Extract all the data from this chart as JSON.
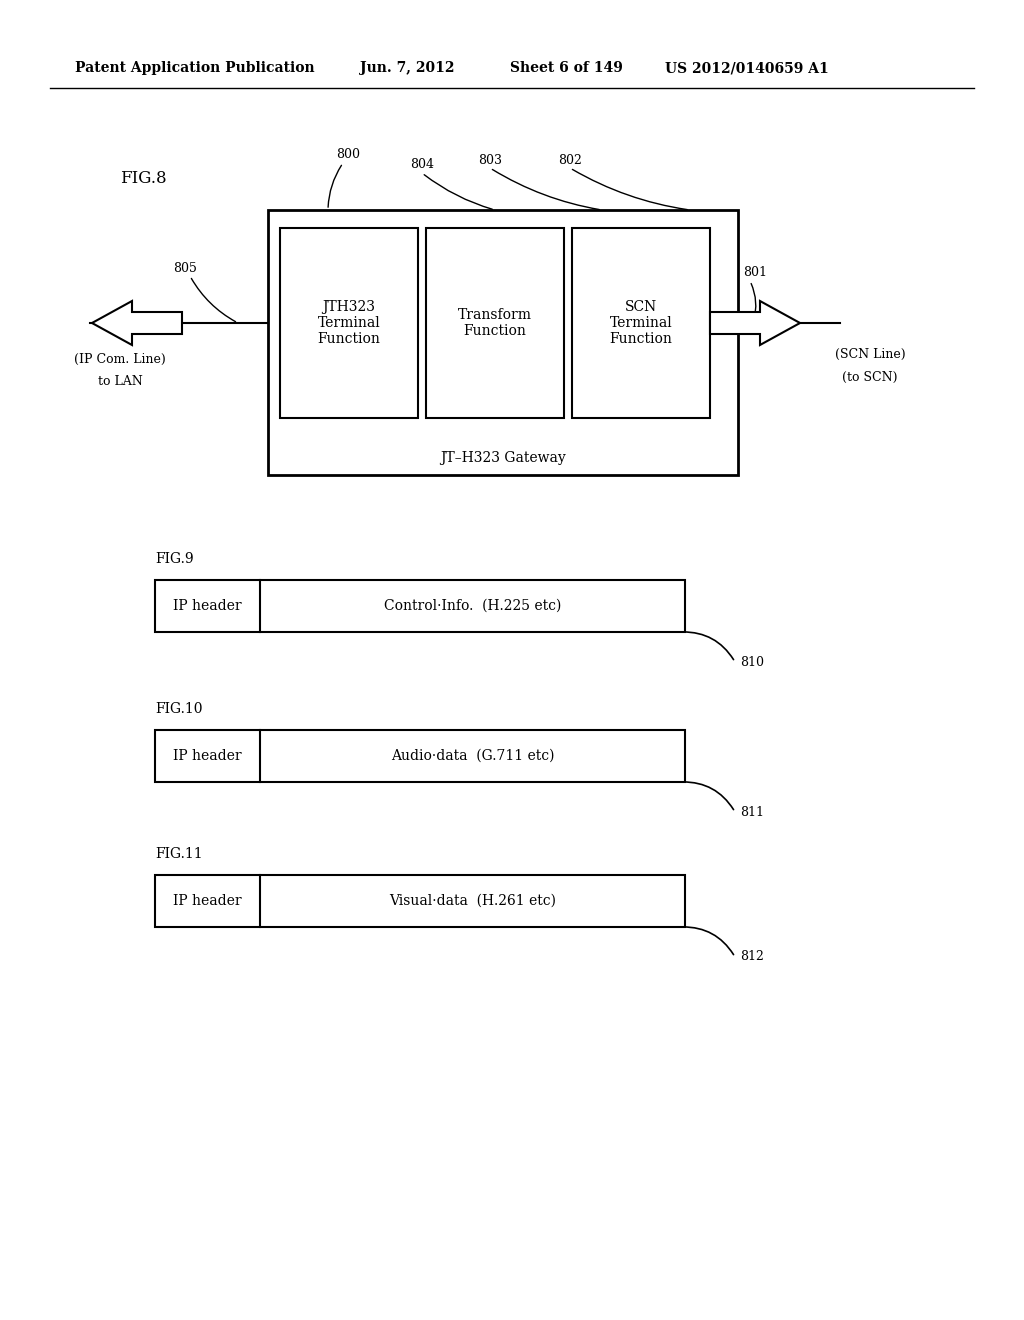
{
  "bg_color": "#ffffff",
  "header_text": "Patent Application Publication",
  "header_date": "Jun. 7, 2012",
  "header_sheet": "Sheet 6 of 149",
  "header_patent": "US 2012/0140659 A1",
  "fig8_label": "FIG.8",
  "fig8_gateway_label": "JT–H323 Gateway",
  "label_800": "800",
  "label_804": "804",
  "label_803": "803",
  "label_802": "802",
  "label_805": "805",
  "label_801": "801",
  "packet_figs": [
    {
      "label": "FIG.9",
      "ip_text": "IP header",
      "data_text": "Control·Info.  (H.225 etc)",
      "ref": "810"
    },
    {
      "label": "FIG.10",
      "ip_text": "IP header",
      "data_text": "Audio·data  (G.711 etc)",
      "ref": "811"
    },
    {
      "label": "FIG.11",
      "ip_text": "IP header",
      "data_text": "Visual·data  (H.261 etc)",
      "ref": "812"
    }
  ]
}
